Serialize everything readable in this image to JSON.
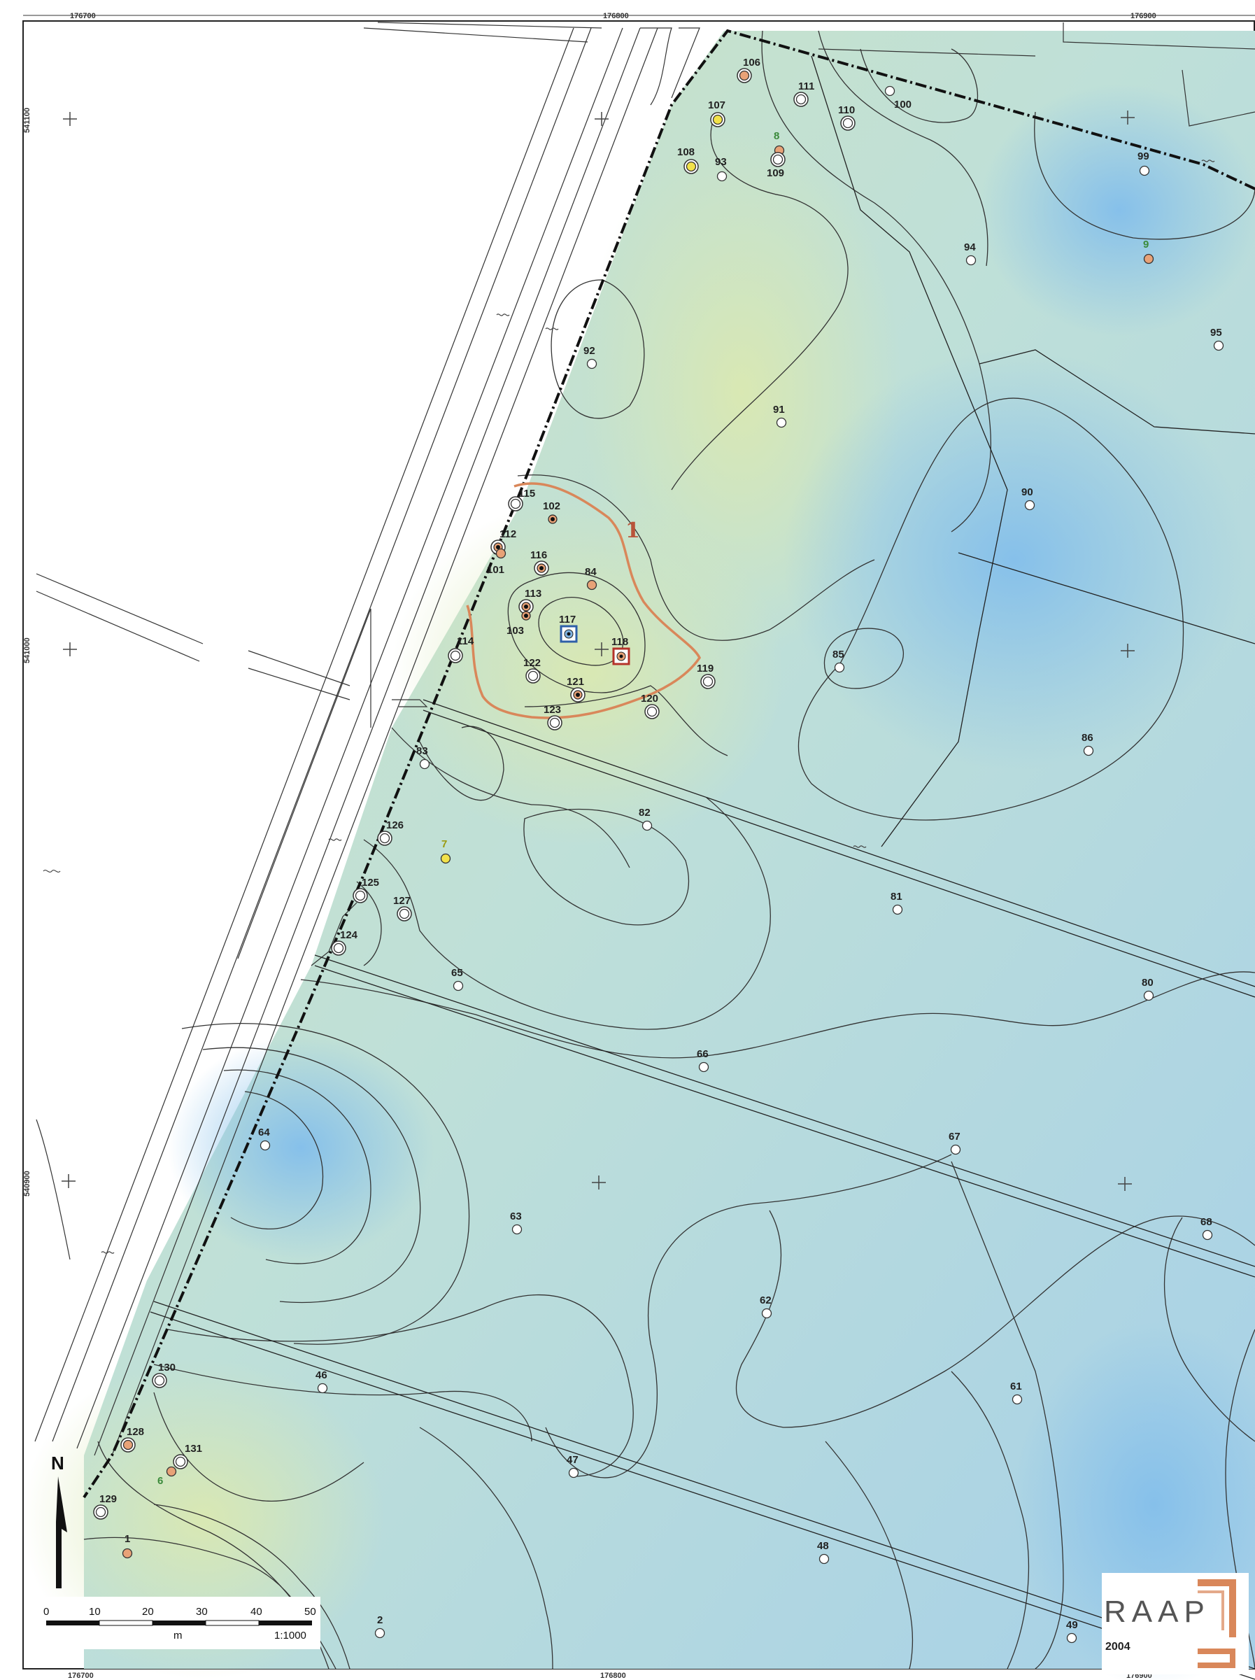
{
  "grid_labels": {
    "top": [
      "176700",
      "176800",
      "176900"
    ],
    "bottom": [
      "176700",
      "176800",
      "176900"
    ],
    "left": [
      "541100",
      "541000",
      "540900"
    ]
  },
  "area_label": "1",
  "survey_points": [
    {
      "id": "106",
      "kind": "orange-ring"
    },
    {
      "id": "111",
      "kind": "white-ring"
    },
    {
      "id": "100",
      "kind": "white"
    },
    {
      "id": "107",
      "kind": "yellow-ring"
    },
    {
      "id": "110",
      "kind": "white-ring"
    },
    {
      "id": "8",
      "kind": "orange",
      "label_color": "green"
    },
    {
      "id": "108",
      "kind": "yellow-ring"
    },
    {
      "id": "93",
      "kind": "white"
    },
    {
      "id": "109",
      "kind": "white-ring"
    },
    {
      "id": "99",
      "kind": "white"
    },
    {
      "id": "94",
      "kind": "white"
    },
    {
      "id": "9",
      "kind": "orange",
      "label_color": "green"
    },
    {
      "id": "95",
      "kind": "white"
    },
    {
      "id": "92",
      "kind": "white"
    },
    {
      "id": "91",
      "kind": "white"
    },
    {
      "id": "90",
      "kind": "white"
    },
    {
      "id": "115",
      "kind": "white-ring"
    },
    {
      "id": "102",
      "kind": "black-dot"
    },
    {
      "id": "112",
      "kind": "black-dot-ring"
    },
    {
      "id": "101",
      "kind": "orange"
    },
    {
      "id": "116",
      "kind": "black-dot-ring"
    },
    {
      "id": "84",
      "kind": "orange"
    },
    {
      "id": "113",
      "kind": "black-dot-ring"
    },
    {
      "id": "103",
      "kind": "black-dot"
    },
    {
      "id": "117",
      "kind": "blue-square"
    },
    {
      "id": "114",
      "kind": "white-ring"
    },
    {
      "id": "118",
      "kind": "red-square"
    },
    {
      "id": "85",
      "kind": "white"
    },
    {
      "id": "122",
      "kind": "white-ring"
    },
    {
      "id": "119",
      "kind": "white-ring"
    },
    {
      "id": "121",
      "kind": "black-dot-ring"
    },
    {
      "id": "120",
      "kind": "white-ring"
    },
    {
      "id": "123",
      "kind": "white-ring"
    },
    {
      "id": "86",
      "kind": "white"
    },
    {
      "id": "83",
      "kind": "white"
    },
    {
      "id": "82",
      "kind": "white"
    },
    {
      "id": "126",
      "kind": "white-ring"
    },
    {
      "id": "7",
      "kind": "yellow",
      "label_color": "yellowgreen"
    },
    {
      "id": "125",
      "kind": "white-ring"
    },
    {
      "id": "127",
      "kind": "white-ring"
    },
    {
      "id": "81",
      "kind": "white"
    },
    {
      "id": "124",
      "kind": "white-ring"
    },
    {
      "id": "65",
      "kind": "white"
    },
    {
      "id": "80",
      "kind": "white"
    },
    {
      "id": "66",
      "kind": "white"
    },
    {
      "id": "64",
      "kind": "white"
    },
    {
      "id": "67",
      "kind": "white"
    },
    {
      "id": "63",
      "kind": "white"
    },
    {
      "id": "68",
      "kind": "white"
    },
    {
      "id": "62",
      "kind": "white"
    },
    {
      "id": "130",
      "kind": "white-ring"
    },
    {
      "id": "46",
      "kind": "white"
    },
    {
      "id": "61",
      "kind": "white"
    },
    {
      "id": "128",
      "kind": "orange-ring"
    },
    {
      "id": "131",
      "kind": "white-ring"
    },
    {
      "id": "6",
      "kind": "orange",
      "label_color": "green"
    },
    {
      "id": "47",
      "kind": "white"
    },
    {
      "id": "129",
      "kind": "white-ring"
    },
    {
      "id": "1",
      "kind": "orange"
    },
    {
      "id": "48",
      "kind": "white"
    },
    {
      "id": "2",
      "kind": "white"
    },
    {
      "id": "49",
      "kind": "white"
    }
  ],
  "north_label": "N",
  "scale_bar": {
    "ticks": [
      "0",
      "10",
      "20",
      "30",
      "40",
      "50"
    ],
    "unit": "m",
    "ratio": "1:1000"
  },
  "logo": {
    "text": "RAAP",
    "year": "2004"
  },
  "colors": {
    "high_ground": "#d6e6b8",
    "mid_ground": "#c6e2dc",
    "low_ground": "#9fcbe6",
    "area_outline": "#d98a5c",
    "boundary": "#111111"
  }
}
